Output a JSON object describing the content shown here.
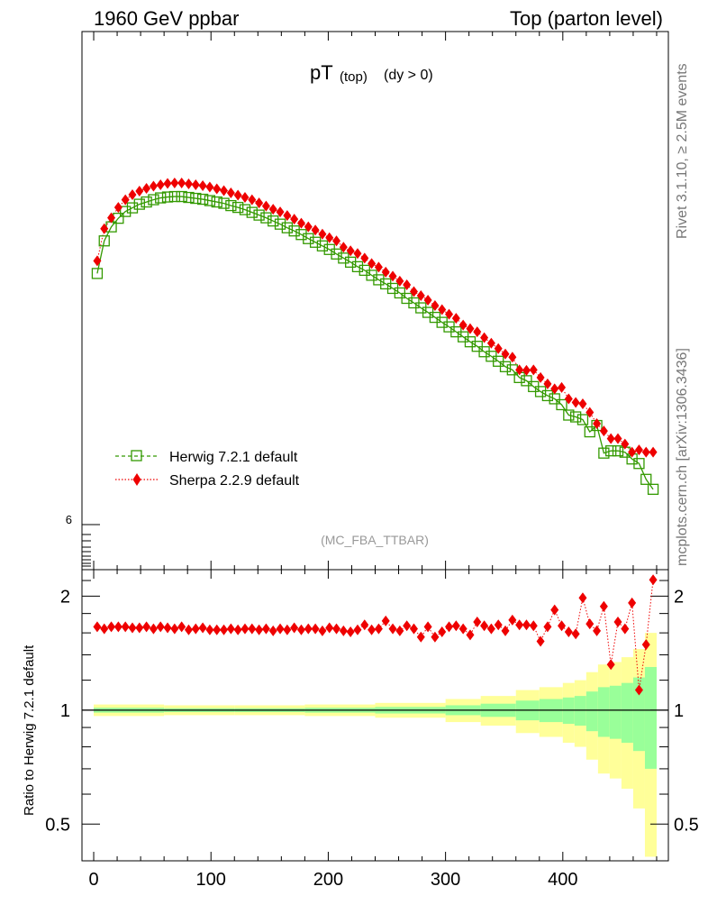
{
  "header": {
    "left": "1960 GeV ppbar",
    "right": "Top (parton level)"
  },
  "side": {
    "rivet": "Rivet 3.1.10, ≥ 2.5M events",
    "mcplots": "mcplots.cern.ch [arXiv:1306.3436]"
  },
  "chart_data": {
    "type": "line",
    "title_main": "pT",
    "title_sub": "(top)",
    "title_cut": "(dy > 0)",
    "watermark": "(MC_FBA_TTBAR)",
    "ylabel_ratio": "Ratio to Herwig 7.2.1 default",
    "x_ticks": [
      "0",
      "100",
      "200",
      "300",
      "400"
    ],
    "xlim": [
      -10,
      490
    ],
    "main_ylabels": [
      {
        "value": "6",
        "pos": 0.0
      }
    ],
    "ratio_ticks": [
      0.5,
      1,
      2
    ],
    "ratio_ylim": [
      0.4,
      2.35
    ],
    "legend": [
      {
        "label": "Herwig 7.2.1 default",
        "color": "#339900",
        "marker": "square"
      },
      {
        "label": "Sherpa 2.2.9 default",
        "color": "#ee0000",
        "marker": "diamond"
      }
    ],
    "series": [
      {
        "name": "Herwig 7.2.1 default",
        "x": [
          3,
          9,
          15,
          21,
          27,
          33,
          39,
          45,
          51,
          57,
          63,
          69,
          75,
          81,
          87,
          93,
          99,
          105,
          111,
          117,
          123,
          129,
          135,
          141,
          147,
          153,
          159,
          165,
          171,
          177,
          183,
          189,
          195,
          201,
          207,
          213,
          219,
          225,
          231,
          237,
          243,
          249,
          255,
          261,
          267,
          273,
          279,
          285,
          291,
          297,
          303,
          309,
          315,
          321,
          327,
          333,
          339,
          345,
          351,
          357,
          363,
          369,
          375,
          381,
          387,
          393,
          399,
          405,
          411,
          417,
          423,
          429,
          435,
          441,
          447,
          453,
          459,
          465,
          471,
          477
        ],
        "y_norm": [
          0.555,
          0.627,
          0.658,
          0.677,
          0.692,
          0.7,
          0.708,
          0.713,
          0.718,
          0.722,
          0.724,
          0.725,
          0.725,
          0.723,
          0.721,
          0.719,
          0.716,
          0.713,
          0.71,
          0.705,
          0.701,
          0.696,
          0.69,
          0.684,
          0.678,
          0.671,
          0.664,
          0.656,
          0.649,
          0.641,
          0.632,
          0.624,
          0.616,
          0.608,
          0.598,
          0.589,
          0.58,
          0.57,
          0.562,
          0.551,
          0.541,
          0.532,
          0.522,
          0.512,
          0.5,
          0.49,
          0.479,
          0.469,
          0.458,
          0.447,
          0.437,
          0.426,
          0.415,
          0.404,
          0.394,
          0.382,
          0.372,
          0.361,
          0.349,
          0.342,
          0.325,
          0.318,
          0.305,
          0.294,
          0.285,
          0.278,
          0.265,
          0.242,
          0.238,
          0.232,
          0.205,
          0.219,
          0.158,
          0.163,
          0.163,
          0.16,
          0.145,
          0.135,
          0.1,
          0.078
        ]
      },
      {
        "name": "Sherpa 2.2.9 default",
        "x": [
          3,
          9,
          15,
          21,
          27,
          33,
          39,
          45,
          51,
          57,
          63,
          69,
          75,
          81,
          87,
          93,
          99,
          105,
          111,
          117,
          123,
          129,
          135,
          141,
          147,
          153,
          159,
          165,
          171,
          177,
          183,
          189,
          195,
          201,
          207,
          213,
          219,
          225,
          231,
          237,
          243,
          249,
          255,
          261,
          267,
          273,
          279,
          285,
          291,
          297,
          303,
          309,
          315,
          321,
          327,
          333,
          339,
          345,
          351,
          357,
          363,
          369,
          375,
          381,
          387,
          393,
          399,
          405,
          411,
          417,
          423,
          429,
          435,
          441,
          447,
          453,
          459,
          465,
          471,
          477
        ],
        "y_norm": [
          0.583,
          0.654,
          0.678,
          0.701,
          0.718,
          0.729,
          0.737,
          0.743,
          0.748,
          0.751,
          0.754,
          0.755,
          0.755,
          0.753,
          0.751,
          0.749,
          0.746,
          0.742,
          0.738,
          0.733,
          0.728,
          0.723,
          0.718,
          0.711,
          0.704,
          0.697,
          0.691,
          0.683,
          0.675,
          0.666,
          0.658,
          0.651,
          0.642,
          0.634,
          0.627,
          0.613,
          0.605,
          0.599,
          0.589,
          0.577,
          0.569,
          0.558,
          0.549,
          0.538,
          0.53,
          0.515,
          0.506,
          0.496,
          0.484,
          0.475,
          0.465,
          0.456,
          0.441,
          0.433,
          0.426,
          0.413,
          0.401,
          0.389,
          0.377,
          0.37,
          0.342,
          0.341,
          0.342,
          0.325,
          0.311,
          0.3,
          0.303,
          0.278,
          0.27,
          0.267,
          0.248,
          0.223,
          0.207,
          0.19,
          0.19,
          0.178,
          0.16,
          0.165,
          0.16,
          0.16
        ]
      }
    ],
    "ratio_series": {
      "name": "Sherpa 2.2.9 default",
      "values": [
        1.66,
        1.64,
        1.66,
        1.66,
        1.66,
        1.65,
        1.65,
        1.66,
        1.64,
        1.66,
        1.65,
        1.64,
        1.66,
        1.63,
        1.64,
        1.65,
        1.63,
        1.63,
        1.63,
        1.64,
        1.63,
        1.64,
        1.64,
        1.63,
        1.64,
        1.62,
        1.64,
        1.63,
        1.65,
        1.63,
        1.64,
        1.64,
        1.62,
        1.65,
        1.64,
        1.62,
        1.61,
        1.63,
        1.68,
        1.63,
        1.64,
        1.72,
        1.64,
        1.62,
        1.67,
        1.64,
        1.56,
        1.66,
        1.56,
        1.61,
        1.66,
        1.67,
        1.64,
        1.58,
        1.71,
        1.67,
        1.64,
        1.68,
        1.62,
        1.73,
        1.68,
        1.68,
        1.67,
        1.52,
        1.66,
        1.84,
        1.67,
        1.61,
        1.59,
        1.98,
        1.69,
        1.62,
        1.88,
        1.32,
        1.71,
        1.64,
        1.92,
        1.13,
        1.49,
        2.21
      ],
      "x_offsets": [
        3,
        9,
        15,
        21,
        27,
        33,
        39,
        45,
        51,
        57,
        63,
        69,
        75,
        81,
        87,
        93,
        99,
        105,
        111,
        117,
        123,
        129,
        135,
        141,
        147,
        153,
        159,
        165,
        171,
        177,
        183,
        189,
        195,
        201,
        207,
        213,
        219,
        225,
        231,
        237,
        243,
        249,
        255,
        261,
        267,
        273,
        279,
        285,
        291,
        297,
        303,
        309,
        315,
        321,
        327,
        333,
        339,
        345,
        351,
        357,
        363,
        369,
        375,
        381,
        387,
        393,
        399,
        405,
        411,
        417,
        423,
        429,
        435,
        441,
        447,
        453,
        459,
        465,
        471,
        477
      ]
    },
    "bands": {
      "x_edges": [
        0,
        60,
        120,
        180,
        240,
        300,
        330,
        360,
        380,
        400,
        410,
        420,
        430,
        440,
        450,
        460,
        470,
        480
      ],
      "green_half": [
        0.015,
        0.012,
        0.012,
        0.015,
        0.02,
        0.03,
        0.04,
        0.06,
        0.07,
        0.08,
        0.09,
        0.12,
        0.15,
        0.16,
        0.18,
        0.22,
        0.3
      ],
      "yellow_half": [
        0.035,
        0.03,
        0.03,
        0.035,
        0.045,
        0.07,
        0.09,
        0.13,
        0.15,
        0.18,
        0.2,
        0.26,
        0.32,
        0.34,
        0.38,
        0.45,
        0.6
      ]
    }
  },
  "colors": {
    "herwig": "#339900",
    "sherpa": "#ee0000",
    "band_green": "#99ff99",
    "band_yellow": "#ffff99"
  }
}
